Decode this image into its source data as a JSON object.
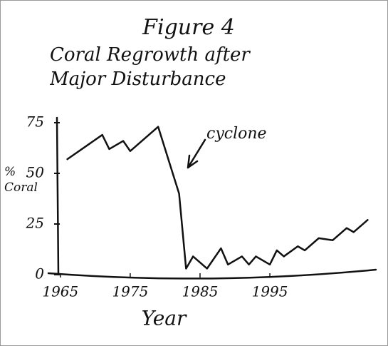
{
  "chart_data": {
    "type": "line",
    "title": "Figure 4",
    "subtitle": "Coral Regrowth after Major Disturbance",
    "y_label": "% Coral",
    "x_label": "Year",
    "annotation": "cyclone",
    "x": [
      1966,
      1971,
      1972,
      1974,
      1975,
      1979,
      1982,
      1983,
      1984,
      1986,
      1988,
      1989,
      1991,
      1992,
      1993,
      1995,
      1996,
      1997,
      1999,
      2000,
      2002,
      2004,
      2006,
      2007,
      2009
    ],
    "series": [
      {
        "name": "% Coral",
        "color": "#111111",
        "values": [
          57,
          69,
          62,
          66,
          61,
          73,
          40,
          3,
          9,
          3,
          13,
          5,
          9,
          5,
          9,
          5,
          12,
          9,
          14,
          12,
          18,
          17,
          23,
          21,
          27
        ]
      }
    ],
    "xlim": [
      1964,
      2011
    ],
    "xticks": [
      1965,
      1975,
      1985,
      1995
    ],
    "ylim": [
      0,
      75
    ],
    "yticks": [
      0,
      25,
      50,
      75
    ],
    "grid": false
  }
}
